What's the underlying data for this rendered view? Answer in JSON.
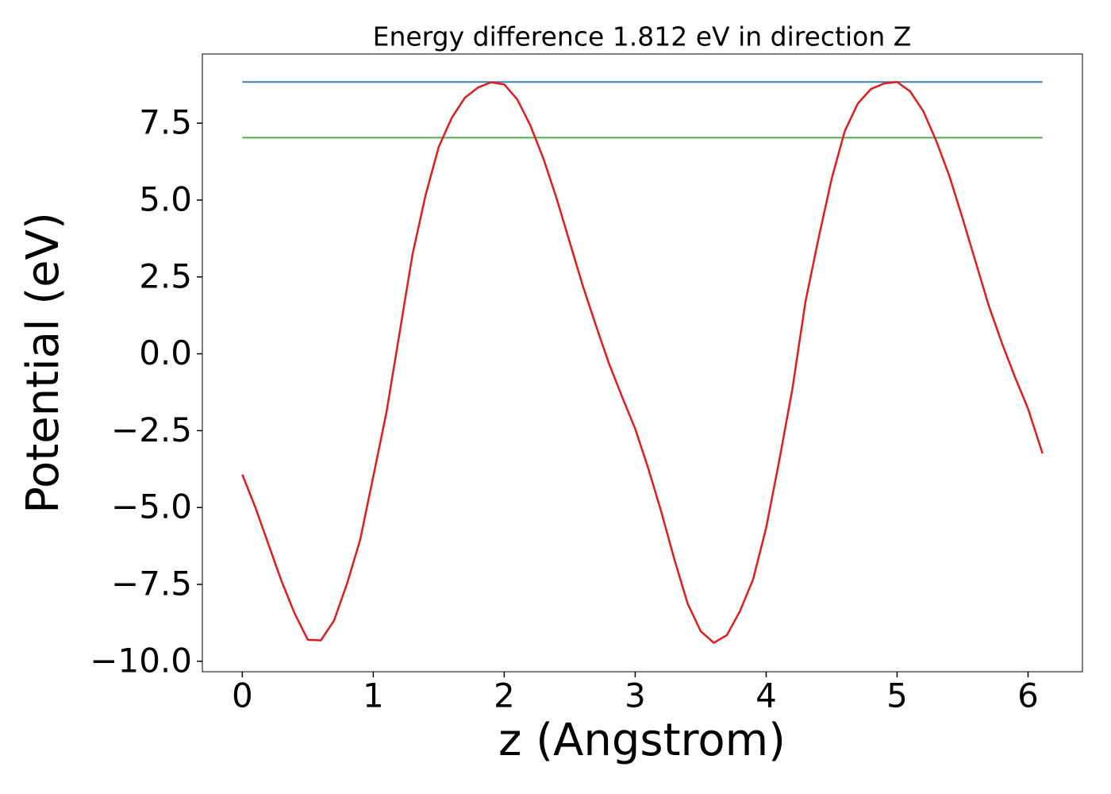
{
  "chart_data": {
    "type": "line",
    "title": "Energy difference 1.812 eV in direction Z",
    "xlabel": "z (Angstrom)",
    "ylabel": "Potential (eV)",
    "x": [
      0,
      0.1,
      0.2,
      0.3,
      0.4,
      0.5,
      0.6,
      0.7,
      0.8,
      0.9,
      1.0,
      1.1,
      1.2,
      1.3,
      1.4,
      1.5,
      1.6,
      1.7,
      1.8,
      1.9,
      2.0,
      2.1,
      2.2,
      2.3,
      2.4,
      2.5,
      2.6,
      2.7,
      2.8,
      2.9,
      3.0,
      3.1,
      3.2,
      3.3,
      3.4,
      3.5,
      3.6,
      3.7,
      3.8,
      3.9,
      4.0,
      4.1,
      4.2,
      4.3,
      4.4,
      4.5,
      4.6,
      4.7,
      4.8,
      4.9,
      5.0,
      5.1,
      5.2,
      5.3,
      5.4,
      5.5,
      5.6,
      5.7,
      5.8,
      5.9,
      6.0,
      6.11
    ],
    "series": [
      {
        "color": "#e41a1c",
        "values": [
          -3.93,
          -5.0,
          -6.2,
          -7.4,
          -8.45,
          -9.3,
          -9.32,
          -8.68,
          -7.47,
          -6.05,
          -3.99,
          -1.92,
          0.66,
          3.24,
          5.17,
          6.73,
          7.68,
          8.33,
          8.66,
          8.83,
          8.76,
          8.27,
          7.42,
          6.34,
          5.05,
          3.63,
          2.21,
          0.92,
          -0.32,
          -1.4,
          -2.44,
          -3.73,
          -5.15,
          -6.7,
          -8.12,
          -9.02,
          -9.4,
          -9.15,
          -8.37,
          -7.34,
          -5.66,
          -3.47,
          -1.15,
          1.69,
          3.76,
          5.69,
          7.24,
          8.14,
          8.61,
          8.79,
          8.84,
          8.53,
          7.89,
          6.91,
          5.77,
          4.4,
          2.98,
          1.56,
          0.35,
          -0.76,
          -1.79,
          -3.24
        ]
      }
    ],
    "hlines": [
      {
        "y": 8.84,
        "color": "#377eb8",
        "xmin": 0,
        "xmax": 6.11
      },
      {
        "y": 7.03,
        "color": "#4daf4a",
        "xmin": 0,
        "xmax": 6.11
      }
    ],
    "xlim": [
      -0.305,
      6.415
    ],
    "ylim": [
      -10.34,
      9.75
    ],
    "xticks": [
      0,
      1,
      2,
      3,
      4,
      5,
      6
    ],
    "yticks": [
      {
        "value": -10.0,
        "label": "−10.0"
      },
      {
        "value": -7.5,
        "label": "−7.5"
      },
      {
        "value": -5.0,
        "label": "−5.0"
      },
      {
        "value": -2.5,
        "label": "−2.5"
      },
      {
        "value": 0.0,
        "label": "0.0"
      },
      2.5,
      {
        "value": 5.0,
        "label": "5.0"
      },
      7.5
    ],
    "grid": false
  }
}
